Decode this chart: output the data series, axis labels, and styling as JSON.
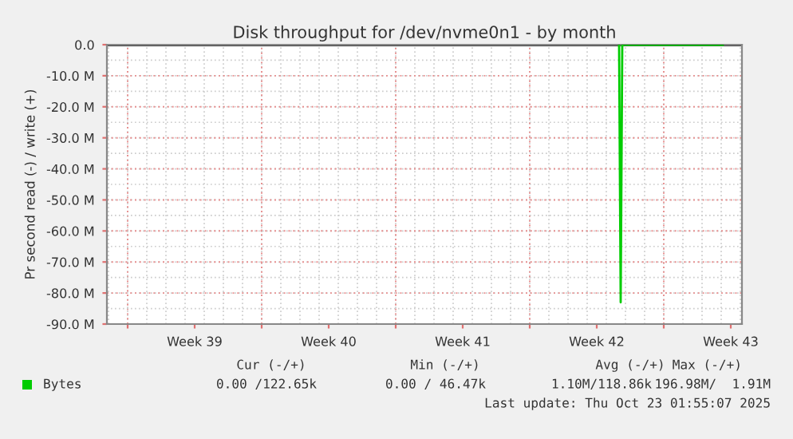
{
  "chart_data": {
    "type": "line",
    "title": "Disk throughput for /dev/nvme0n1 - by month",
    "ylabel": "Pr second read (-) / write (+)",
    "x": [
      "2025-10-17T16:00",
      "2025-10-17T18:00",
      "2025-10-17T20:00",
      "2025-10-19T00:00",
      "2025-10-21T00:00",
      "2025-10-23T02:00"
    ],
    "series": [
      {
        "name": "Bytes",
        "color": "#00cc00",
        "values": [
          0,
          -83,
          0,
          0,
          0,
          0
        ]
      }
    ],
    "xlim": [
      "2025-09-20T22:00",
      "2025-10-24T02:00"
    ],
    "xticks": [
      {
        "value": "2025-09-22",
        "label": null
      },
      {
        "value": "2025-09-25T12:00",
        "label": "Week 39"
      },
      {
        "value": "2025-09-29",
        "label": null
      },
      {
        "value": "2025-10-02T12:00",
        "label": "Week 40"
      },
      {
        "value": "2025-10-06",
        "label": null
      },
      {
        "value": "2025-10-09T12:00",
        "label": "Week 41"
      },
      {
        "value": "2025-10-13",
        "label": null
      },
      {
        "value": "2025-10-16T12:00",
        "label": "Week 42"
      },
      {
        "value": "2025-10-20",
        "label": null
      },
      {
        "value": "2025-10-23T12:00",
        "label": "Week 43"
      }
    ],
    "ylim": [
      -90,
      0
    ],
    "yticks": [
      {
        "value": 0,
        "label": "0.0"
      },
      {
        "value": -10,
        "label": "-10.0 M"
      },
      {
        "value": -20,
        "label": "-20.0 M"
      },
      {
        "value": -30,
        "label": "-30.0 M"
      },
      {
        "value": -40,
        "label": "-40.0 M"
      },
      {
        "value": -50,
        "label": "-50.0 M"
      },
      {
        "value": -60,
        "label": "-60.0 M"
      },
      {
        "value": -70,
        "label": "-70.0 M"
      },
      {
        "value": -80,
        "label": "-80.0 M"
      },
      {
        "value": -90,
        "label": "-90.0 M"
      }
    ],
    "grid": true,
    "legend": "bottom",
    "marker": "none",
    "line_style": "solid",
    "annotations": [
      "Cur (-/+)",
      "Min (-/+)",
      "Avg (-/+)",
      "Max (-/+)",
      "0.00 /122.65k",
      "0.00 / 46.47k",
      "1.10M/118.86k",
      "196.98M/  1.91M",
      "Last update: Thu Oct 23 01:55:07 2025"
    ]
  }
}
